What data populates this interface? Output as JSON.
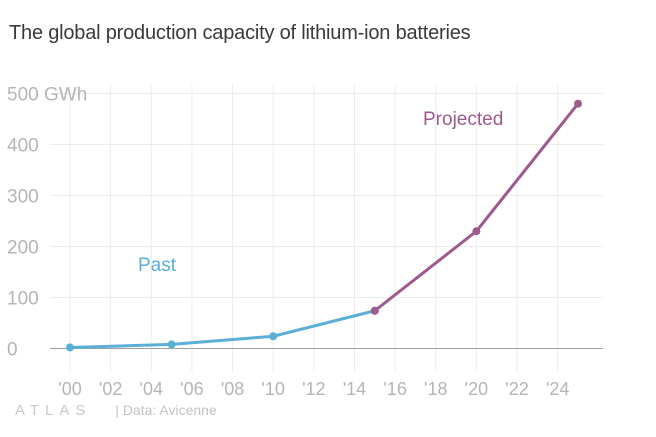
{
  "title": "The global production capacity of lithium-ion batteries",
  "footer": {
    "brand": "ATLAS",
    "source": "| Data: Avicenne"
  },
  "colors": {
    "past": "#5aafd6",
    "projected": "#9c5a8e",
    "grid": "#ececec",
    "baseline": "#a0a0a0"
  },
  "chart_data": {
    "type": "line",
    "title": "The global production capacity of lithium-ion batteries",
    "ylabel": "",
    "xlabel": "",
    "xlim": [
      1999,
      2026
    ],
    "ylim": [
      -30,
      520
    ],
    "y_ticks": [
      0,
      100,
      200,
      300,
      400,
      500
    ],
    "y_tick_labels": [
      "0",
      "100",
      "200",
      "300",
      "400",
      "500 GWh"
    ],
    "x_ticks": [
      2000,
      2002,
      2004,
      2006,
      2008,
      2010,
      2012,
      2014,
      2016,
      2018,
      2020,
      2022,
      2024
    ],
    "x_tick_labels": [
      "'00",
      "'02",
      "'04",
      "'06",
      "'08",
      "'10",
      "'12",
      "'14",
      "'16",
      "'18",
      "'20",
      "'22",
      "'24"
    ],
    "grid": true,
    "series": [
      {
        "name": "Past",
        "color": "#5aafd6",
        "x": [
          2000,
          2005,
          2010,
          2015
        ],
        "y": [
          2,
          8,
          24,
          74
        ]
      },
      {
        "name": "Projected",
        "color": "#9c5a8e",
        "x": [
          2015,
          2020,
          2025
        ],
        "y": [
          74,
          230,
          480
        ]
      }
    ]
  }
}
